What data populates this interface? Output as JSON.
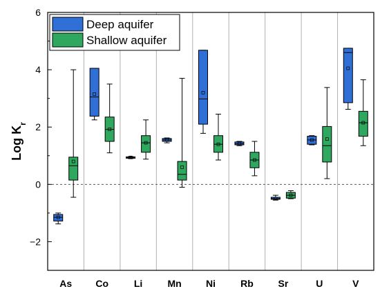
{
  "chart_data": {
    "type": "box",
    "categories": [
      "As",
      "Co",
      "Li",
      "Mn",
      "Ni",
      "Rb",
      "Sr",
      "U",
      "V"
    ],
    "ylabel": "Log K",
    "ylabel_subscript": "r",
    "ylim": [
      -3,
      6
    ],
    "yticks": [
      6,
      4,
      2,
      0,
      -2
    ],
    "ytick_labels": [
      "6",
      "4",
      "2",
      "0",
      "−2"
    ],
    "reference_line": 0,
    "legend_position": "top-left",
    "series": [
      {
        "name": "Deep aquifer",
        "color": "#2f6fd6",
        "boxes": [
          {
            "whisker_low": -1.38,
            "q1": -1.28,
            "median": -1.15,
            "q3": -1.05,
            "whisker_high": -1.0,
            "mean": -1.15
          },
          {
            "whisker_low": 2.25,
            "q1": 2.38,
            "median": 3.05,
            "q3": 4.05,
            "whisker_high": 4.05,
            "mean": 3.15
          },
          {
            "whisker_low": 0.9,
            "q1": 0.92,
            "median": 0.94,
            "q3": 0.96,
            "whisker_high": 0.97,
            "mean": 0.94
          },
          {
            "whisker_low": 1.45,
            "q1": 1.5,
            "median": 1.55,
            "q3": 1.6,
            "whisker_high": 1.62,
            "mean": 1.55
          },
          {
            "whisker_low": 1.78,
            "q1": 2.1,
            "median": 2.98,
            "q3": 4.68,
            "whisker_high": 4.68,
            "mean": 3.2
          },
          {
            "whisker_low": 1.35,
            "q1": 1.38,
            "median": 1.42,
            "q3": 1.48,
            "whisker_high": 1.5,
            "mean": 1.42
          },
          {
            "whisker_low": -0.55,
            "q1": -0.52,
            "median": -0.5,
            "q3": -0.45,
            "whisker_high": -0.38,
            "mean": -0.5
          },
          {
            "whisker_low": 1.38,
            "q1": 1.4,
            "median": 1.55,
            "q3": 1.68,
            "whisker_high": 1.7,
            "mean": 1.55
          },
          {
            "whisker_low": 2.62,
            "q1": 2.85,
            "median": 4.6,
            "q3": 4.75,
            "whisker_high": 4.75,
            "mean": 4.05
          }
        ]
      },
      {
        "name": "Shallow aquifer",
        "color": "#2fa75e",
        "boxes": [
          {
            "whisker_low": -0.45,
            "q1": 0.15,
            "median": 0.65,
            "q3": 0.95,
            "whisker_high": 4.0,
            "mean": 0.8
          },
          {
            "whisker_low": 1.1,
            "q1": 1.5,
            "median": 1.92,
            "q3": 2.35,
            "whisker_high": 3.5,
            "mean": 1.92
          },
          {
            "whisker_low": 0.88,
            "q1": 1.12,
            "median": 1.45,
            "q3": 1.7,
            "whisker_high": 2.25,
            "mean": 1.45
          },
          {
            "whisker_low": -0.1,
            "q1": 0.15,
            "median": 0.35,
            "q3": 0.8,
            "whisker_high": 3.7,
            "mean": 0.6
          },
          {
            "whisker_low": 0.85,
            "q1": 1.12,
            "median": 1.4,
            "q3": 1.7,
            "whisker_high": 2.45,
            "mean": 1.4
          },
          {
            "whisker_low": 0.3,
            "q1": 0.58,
            "median": 0.85,
            "q3": 1.12,
            "whisker_high": 1.5,
            "mean": 0.85
          },
          {
            "whisker_low": -0.5,
            "q1": -0.48,
            "median": -0.38,
            "q3": -0.28,
            "whisker_high": -0.22,
            "mean": -0.38
          },
          {
            "whisker_low": 0.2,
            "q1": 0.78,
            "median": 1.35,
            "q3": 2.02,
            "whisker_high": 3.38,
            "mean": 1.58
          },
          {
            "whisker_low": 1.35,
            "q1": 1.68,
            "median": 2.15,
            "q3": 2.55,
            "whisker_high": 3.65,
            "mean": 2.15
          }
        ]
      }
    ]
  }
}
